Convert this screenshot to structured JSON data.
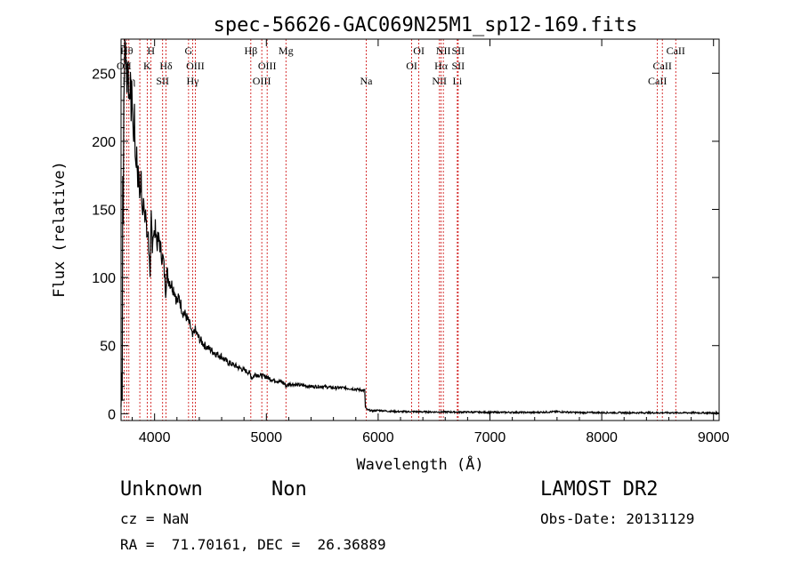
{
  "chart_data": {
    "type": "line",
    "title": "spec-56626-GAC069N25M1_sp12-169.fits",
    "xlabel": "Wavelength (Å)",
    "ylabel": "Flux (relative)",
    "xlim": [
      3700,
      9050
    ],
    "ylim": [
      -5,
      275
    ],
    "x_ticks": [
      4000,
      5000,
      6000,
      7000,
      8000,
      9000
    ],
    "y_ticks": [
      0,
      50,
      100,
      150,
      200,
      250
    ],
    "grid": false,
    "line_color": "#000000",
    "marker_color": "#cc0000",
    "spectrum": [
      [
        3700,
        5
      ],
      [
        3705,
        30
      ],
      [
        3710,
        10
      ],
      [
        3715,
        180
      ],
      [
        3720,
        140
      ],
      [
        3725,
        230
      ],
      [
        3730,
        260
      ],
      [
        3740,
        275
      ],
      [
        3750,
        240
      ],
      [
        3760,
        265
      ],
      [
        3770,
        230
      ],
      [
        3780,
        245
      ],
      [
        3790,
        225
      ],
      [
        3800,
        235
      ],
      [
        3810,
        200
      ],
      [
        3820,
        215
      ],
      [
        3830,
        185
      ],
      [
        3840,
        190
      ],
      [
        3850,
        175
      ],
      [
        3860,
        170
      ],
      [
        3870,
        160
      ],
      [
        3880,
        175
      ],
      [
        3890,
        150
      ],
      [
        3900,
        160
      ],
      [
        3910,
        140
      ],
      [
        3920,
        150
      ],
      [
        3930,
        130
      ],
      [
        3940,
        135
      ],
      [
        3950,
        120
      ],
      [
        3960,
        95
      ],
      [
        3970,
        145
      ],
      [
        3980,
        125
      ],
      [
        3990,
        135
      ],
      [
        4000,
        130
      ],
      [
        4010,
        138
      ],
      [
        4020,
        125
      ],
      [
        4040,
        128
      ],
      [
        4060,
        118
      ],
      [
        4080,
        112
      ],
      [
        4100,
        90
      ],
      [
        4110,
        105
      ],
      [
        4120,
        100
      ],
      [
        4150,
        95
      ],
      [
        4180,
        90
      ],
      [
        4200,
        82
      ],
      [
        4220,
        85
      ],
      [
        4250,
        75
      ],
      [
        4280,
        72
      ],
      [
        4300,
        68
      ],
      [
        4320,
        64
      ],
      [
        4340,
        56
      ],
      [
        4360,
        62
      ],
      [
        4380,
        58
      ],
      [
        4400,
        55
      ],
      [
        4450,
        50
      ],
      [
        4500,
        47
      ],
      [
        4550,
        44
      ],
      [
        4600,
        42
      ],
      [
        4650,
        38
      ],
      [
        4700,
        36
      ],
      [
        4750,
        34
      ],
      [
        4800,
        32
      ],
      [
        4850,
        30
      ],
      [
        4870,
        26
      ],
      [
        4900,
        29
      ],
      [
        4950,
        28
      ],
      [
        5000,
        27
      ],
      [
        5050,
        25
      ],
      [
        5100,
        24
      ],
      [
        5150,
        23
      ],
      [
        5180,
        20
      ],
      [
        5200,
        22
      ],
      [
        5300,
        21
      ],
      [
        5400,
        20
      ],
      [
        5500,
        20
      ],
      [
        5600,
        19
      ],
      [
        5700,
        19
      ],
      [
        5800,
        18
      ],
      [
        5880,
        17
      ],
      [
        5885,
        5
      ],
      [
        5900,
        3
      ],
      [
        5950,
        2
      ],
      [
        6000,
        2.5
      ],
      [
        6100,
        1.8
      ],
      [
        6200,
        1.5
      ],
      [
        6300,
        1.5
      ],
      [
        6400,
        1.4
      ],
      [
        6500,
        1.3
      ],
      [
        6600,
        1.3
      ],
      [
        6700,
        1.2
      ],
      [
        6800,
        1.2
      ],
      [
        6900,
        1.1
      ],
      [
        7000,
        1
      ],
      [
        7200,
        1
      ],
      [
        7400,
        0.9
      ],
      [
        7600,
        1.5
      ],
      [
        7800,
        0.8
      ],
      [
        8000,
        0.8
      ],
      [
        8200,
        0.7
      ],
      [
        8400,
        0.7
      ],
      [
        8600,
        0.7
      ],
      [
        8800,
        0.7
      ],
      [
        9000,
        0.6
      ],
      [
        9050,
        0.6
      ]
    ],
    "lines": [
      {
        "w": 3727,
        "labels": [
          {
            "text": "OII",
            "row": 2
          }
        ]
      },
      {
        "w": 3750,
        "labels": [
          {
            "text": "Hθ",
            "row": 1
          }
        ]
      },
      {
        "w": 3770,
        "labels": [
          {
            "text": "Hη",
            "row": 3
          }
        ]
      },
      {
        "w": 3868,
        "labels": [
          {
            "text": "",
            "row": 1
          }
        ]
      },
      {
        "w": 3934,
        "labels": [
          {
            "text": "K",
            "row": 2
          }
        ]
      },
      {
        "w": 3968,
        "labels": [
          {
            "text": "H",
            "row": 1
          }
        ]
      },
      {
        "w": 4072,
        "labels": [
          {
            "text": "SII",
            "row": 3
          }
        ]
      },
      {
        "w": 4102,
        "labels": [
          {
            "text": "Hδ",
            "row": 2
          }
        ]
      },
      {
        "w": 4304,
        "labels": [
          {
            "text": "G",
            "row": 1
          }
        ]
      },
      {
        "w": 4341,
        "labels": [
          {
            "text": "Hγ",
            "row": 3
          }
        ]
      },
      {
        "w": 4364,
        "labels": [
          {
            "text": "OIII",
            "row": 2
          }
        ]
      },
      {
        "w": 4861,
        "labels": [
          {
            "text": "Hβ",
            "row": 1
          }
        ]
      },
      {
        "w": 4959,
        "labels": [
          {
            "text": "OIII",
            "row": 3
          }
        ]
      },
      {
        "w": 5007,
        "labels": [
          {
            "text": "OIII",
            "row": 2
          }
        ]
      },
      {
        "w": 5175,
        "labels": [
          {
            "text": "Mg",
            "row": 1
          }
        ]
      },
      {
        "w": 5893,
        "labels": [
          {
            "text": "Na",
            "row": 3
          }
        ]
      },
      {
        "w": 6300,
        "labels": [
          {
            "text": "OI",
            "row": 2
          }
        ]
      },
      {
        "w": 6364,
        "labels": [
          {
            "text": "OI",
            "row": 1
          }
        ]
      },
      {
        "w": 6548,
        "labels": [
          {
            "text": "NII",
            "row": 3
          }
        ]
      },
      {
        "w": 6563,
        "labels": [
          {
            "text": "Hα",
            "row": 2
          }
        ]
      },
      {
        "w": 6583,
        "labels": [
          {
            "text": "NII",
            "row": 1
          }
        ]
      },
      {
        "w": 6708,
        "labels": [
          {
            "text": "Li",
            "row": 3
          }
        ]
      },
      {
        "w": 6716,
        "labels": [
          {
            "text": "SII",
            "row": 1
          },
          {
            "text": "SII",
            "row": 2
          }
        ]
      },
      {
        "w": 8498,
        "labels": [
          {
            "text": "CaII",
            "row": 3
          }
        ]
      },
      {
        "w": 8542,
        "labels": [
          {
            "text": "CaII",
            "row": 2
          }
        ]
      },
      {
        "w": 8662,
        "labels": [
          {
            "text": "CaII",
            "row": 1
          }
        ]
      }
    ]
  },
  "footer": {
    "object_class": "Unknown",
    "object_subclass": "Non",
    "survey": "LAMOST DR2",
    "cz": "cz = NaN",
    "obs_date": "Obs-Date: 20131129",
    "coords": "RA =  71.70161, DEC =  26.36889"
  }
}
